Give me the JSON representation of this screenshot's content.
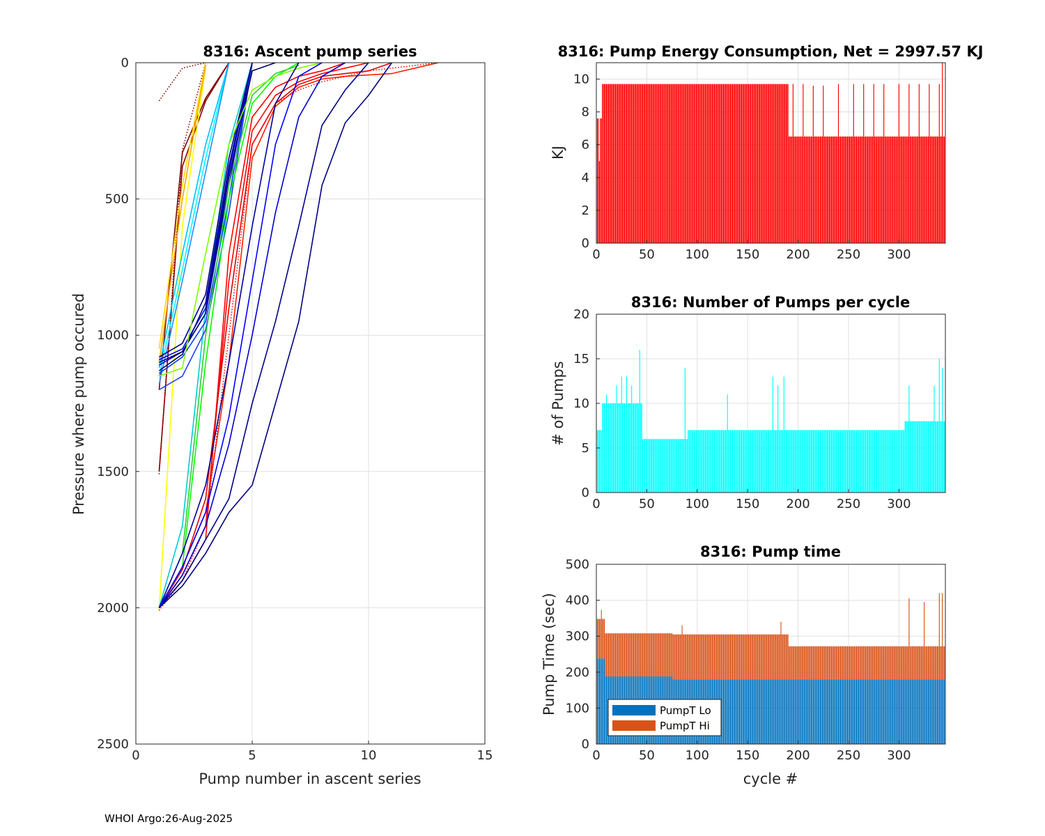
{
  "footer": "WHOI Argo:26-Aug-2025",
  "colors": {
    "energy": "#ff0000",
    "pumps": "#00ffff",
    "pump_lo": "#0072bd",
    "pump_hi": "#d95319",
    "grid": "#e0e0e0"
  },
  "chart_data": [
    {
      "id": "ascent",
      "type": "line",
      "title": "8316: Ascent pump series",
      "xlabel": "Pump number in ascent series",
      "ylabel": "Pressure where pump occured",
      "xlim": [
        0,
        15
      ],
      "ylim": [
        2500,
        0
      ],
      "xticks": [
        0,
        5,
        10,
        15
      ],
      "yticks": [
        0,
        500,
        1000,
        1500,
        2000,
        2500
      ],
      "grid": true,
      "series": [
        {
          "name": "early-dotted-1",
          "color": "#7f0000",
          "style": "dotted",
          "x": [
            1,
            2,
            3
          ],
          "y": [
            140,
            20,
            0
          ]
        },
        {
          "name": "early-dotted-2",
          "color": "#7f0000",
          "style": "dotted",
          "x": [
            1,
            2,
            3
          ],
          "y": [
            1510,
            320,
            0
          ]
        },
        {
          "name": "early-1",
          "color": "#7f0000",
          "style": "solid",
          "x": [
            1,
            2,
            3,
            4
          ],
          "y": [
            1200,
            330,
            130,
            0
          ]
        },
        {
          "name": "early-2",
          "color": "#8b0000",
          "style": "solid",
          "x": [
            1,
            2,
            3,
            4
          ],
          "y": [
            1500,
            380,
            140,
            0
          ]
        },
        {
          "name": "early-3",
          "color": "#ffd700",
          "style": "solid",
          "x": [
            1,
            2,
            3
          ],
          "y": [
            1050,
            450,
            0
          ]
        },
        {
          "name": "early-4",
          "color": "#ffff00",
          "style": "solid",
          "x": [
            1,
            2,
            3
          ],
          "y": [
            2010,
            600,
            20
          ]
        },
        {
          "name": "early-5",
          "color": "#ffa500",
          "style": "solid",
          "x": [
            1,
            2,
            3
          ],
          "y": [
            1100,
            500,
            10
          ]
        },
        {
          "name": "cyan-1",
          "color": "#00bfff",
          "style": "solid",
          "x": [
            1,
            2,
            3,
            4
          ],
          "y": [
            1120,
            700,
            300,
            0
          ]
        },
        {
          "name": "cyan-2",
          "color": "#00ffff",
          "style": "solid",
          "x": [
            1,
            2,
            3,
            4
          ],
          "y": [
            1150,
            760,
            350,
            0
          ]
        },
        {
          "name": "cyan-3",
          "color": "#1e90ff",
          "style": "solid",
          "x": [
            1,
            2,
            3,
            4
          ],
          "y": [
            1180,
            800,
            400,
            0
          ]
        },
        {
          "name": "cyan-4",
          "color": "#00ced1",
          "style": "solid",
          "x": [
            1,
            2,
            3,
            4,
            5
          ],
          "y": [
            2000,
            1700,
            900,
            300,
            0
          ]
        },
        {
          "name": "blue-1",
          "color": "#0000ff",
          "style": "solid",
          "x": [
            1,
            2,
            3,
            4,
            5
          ],
          "y": [
            1090,
            1050,
            900,
            400,
            0
          ]
        },
        {
          "name": "blue-2",
          "color": "#0000cd",
          "style": "solid",
          "x": [
            1,
            2,
            3,
            4,
            5
          ],
          "y": [
            1110,
            1060,
            920,
            450,
            0
          ]
        },
        {
          "name": "blue-3",
          "color": "#0040ff",
          "style": "solid",
          "x": [
            1,
            2,
            3,
            4,
            5
          ],
          "y": [
            1140,
            1080,
            950,
            500,
            0
          ]
        },
        {
          "name": "blue-4",
          "color": "#2040ff",
          "style": "solid",
          "x": [
            1,
            2,
            3,
            4,
            5
          ],
          "y": [
            1200,
            1150,
            980,
            550,
            0
          ]
        },
        {
          "name": "navy-1",
          "color": "#00008b",
          "style": "solid",
          "x": [
            1,
            2,
            3,
            4,
            5
          ],
          "y": [
            1080,
            1030,
            850,
            350,
            0
          ]
        },
        {
          "name": "navy-2",
          "color": "#000080",
          "style": "solid",
          "x": [
            1,
            2,
            3,
            4,
            5
          ],
          "y": [
            1130,
            1070,
            880,
            380,
            0
          ]
        },
        {
          "name": "navy-3",
          "color": "#000066",
          "style": "solid",
          "x": [
            1,
            2,
            3,
            4,
            5,
            6
          ],
          "y": [
            1100,
            1060,
            920,
            420,
            30,
            0
          ]
        },
        {
          "name": "green-1",
          "color": "#00ff00",
          "style": "solid",
          "x": [
            1,
            2,
            3,
            4,
            5,
            6,
            7
          ],
          "y": [
            2000,
            1850,
            1100,
            500,
            150,
            50,
            0
          ]
        },
        {
          "name": "green-2",
          "color": "#32cd32",
          "style": "solid",
          "x": [
            1,
            2,
            3,
            4,
            5,
            6,
            7
          ],
          "y": [
            2000,
            1800,
            1000,
            450,
            120,
            40,
            10
          ]
        },
        {
          "name": "green-3",
          "color": "#7fff00",
          "style": "solid",
          "x": [
            1,
            2,
            3,
            4,
            5,
            6,
            7,
            8
          ],
          "y": [
            1150,
            1120,
            700,
            300,
            100,
            50,
            20,
            0
          ]
        },
        {
          "name": "red-1",
          "color": "#ff0000",
          "style": "solid",
          "x": [
            1,
            2,
            3,
            4,
            5,
            6,
            7,
            8,
            9
          ],
          "y": [
            2000,
            1900,
            1750,
            700,
            200,
            90,
            50,
            30,
            0
          ]
        },
        {
          "name": "red-2",
          "color": "#ff0000",
          "style": "solid",
          "x": [
            1,
            2,
            3,
            4,
            5,
            6,
            7,
            8,
            9,
            10
          ],
          "y": [
            2000,
            1880,
            1700,
            800,
            250,
            120,
            70,
            40,
            20,
            0
          ]
        },
        {
          "name": "red-3",
          "color": "#e00000",
          "style": "solid",
          "x": [
            1,
            2,
            3,
            4,
            5,
            6,
            7,
            8,
            9,
            10,
            11
          ],
          "y": [
            2000,
            1860,
            1600,
            900,
            300,
            150,
            80,
            50,
            40,
            30,
            0
          ]
        },
        {
          "name": "red-4",
          "color": "#ff2000",
          "style": "solid",
          "x": [
            1,
            2,
            3,
            4,
            5,
            6,
            7,
            8,
            9,
            10,
            11,
            12,
            13
          ],
          "y": [
            2000,
            1850,
            1650,
            1100,
            350,
            160,
            90,
            60,
            50,
            45,
            40,
            20,
            0
          ]
        },
        {
          "name": "red-dotted",
          "color": "#ff0000",
          "style": "dotted",
          "x": [
            1,
            2,
            3,
            4,
            5,
            6,
            7,
            8,
            9,
            10,
            11,
            12,
            13
          ],
          "y": [
            2010,
            1900,
            1700,
            1000,
            300,
            150,
            100,
            70,
            50,
            30,
            20,
            10,
            0
          ]
        },
        {
          "name": "late-1",
          "color": "#000080",
          "style": "solid",
          "x": [
            1,
            2,
            3,
            4,
            5,
            6,
            7,
            8,
            9,
            10,
            11
          ],
          "y": [
            2000,
            1920,
            1800,
            1650,
            1550,
            1250,
            950,
            450,
            220,
            120,
            0
          ]
        },
        {
          "name": "late-2",
          "color": "#00008b",
          "style": "solid",
          "x": [
            1,
            2,
            3,
            4,
            5,
            6,
            7,
            8,
            9,
            10
          ],
          "y": [
            2000,
            1900,
            1750,
            1600,
            1250,
            950,
            600,
            230,
            100,
            0
          ]
        },
        {
          "name": "late-3",
          "color": "#0000cd",
          "style": "solid",
          "x": [
            1,
            2,
            3,
            4,
            5,
            6,
            7,
            8,
            9
          ],
          "y": [
            2000,
            1880,
            1700,
            1400,
            1000,
            550,
            200,
            50,
            0
          ]
        },
        {
          "name": "late-4",
          "color": "#0000ff",
          "style": "solid",
          "x": [
            1,
            2,
            3,
            4,
            5,
            6,
            7,
            8
          ],
          "y": [
            2000,
            1850,
            1650,
            1300,
            800,
            300,
            50,
            0
          ]
        },
        {
          "name": "late-5",
          "color": "#0000a0",
          "style": "solid",
          "x": [
            1,
            2,
            3,
            4,
            5,
            6,
            7
          ],
          "y": [
            2000,
            1800,
            1550,
            1100,
            600,
            150,
            0
          ]
        }
      ]
    },
    {
      "id": "energy",
      "type": "bar",
      "title": "8316: Pump Energy Consumption,  Net = 2997.57 KJ",
      "xlabel": "",
      "ylabel": "KJ",
      "xlim": [
        0,
        346
      ],
      "ylim": [
        0,
        11
      ],
      "xticks": [
        0,
        50,
        100,
        150,
        200,
        250,
        300
      ],
      "yticks": [
        0,
        2,
        4,
        6,
        8,
        10
      ],
      "grid": true,
      "color": "#ff0000",
      "n_cycles": 345,
      "segments": [
        {
          "from": 1,
          "to": 5,
          "value": 7.6
        },
        {
          "from": 6,
          "to": 190,
          "value": 9.7
        },
        {
          "from": 191,
          "to": 345,
          "value": 6.5
        }
      ],
      "spikes": [
        {
          "cycle": 3,
          "value": 5.0
        },
        {
          "cycle": 195,
          "value": 9.7
        },
        {
          "cycle": 205,
          "value": 9.7
        },
        {
          "cycle": 215,
          "value": 9.6
        },
        {
          "cycle": 225,
          "value": 9.6
        },
        {
          "cycle": 240,
          "value": 9.7
        },
        {
          "cycle": 255,
          "value": 9.7
        },
        {
          "cycle": 265,
          "value": 9.7
        },
        {
          "cycle": 275,
          "value": 9.7
        },
        {
          "cycle": 285,
          "value": 9.7
        },
        {
          "cycle": 300,
          "value": 9.7
        },
        {
          "cycle": 310,
          "value": 9.7
        },
        {
          "cycle": 320,
          "value": 9.7
        },
        {
          "cycle": 330,
          "value": 9.7
        },
        {
          "cycle": 340,
          "value": 9.7
        },
        {
          "cycle": 343,
          "value": 11.0
        }
      ]
    },
    {
      "id": "pumps",
      "type": "bar",
      "title": "8316: Number of Pumps per cycle",
      "xlabel": "",
      "ylabel": "# of Pumps",
      "xlim": [
        0,
        346
      ],
      "ylim": [
        0,
        20
      ],
      "xticks": [
        0,
        50,
        100,
        150,
        200,
        250,
        300
      ],
      "yticks": [
        0,
        5,
        10,
        15,
        20
      ],
      "grid": true,
      "color": "#00ffff",
      "n_cycles": 345,
      "segments": [
        {
          "from": 1,
          "to": 5,
          "value": 7
        },
        {
          "from": 6,
          "to": 45,
          "value": 10
        },
        {
          "from": 46,
          "to": 90,
          "value": 6
        },
        {
          "from": 91,
          "to": 185,
          "value": 7
        },
        {
          "from": 186,
          "to": 305,
          "value": 7
        },
        {
          "from": 306,
          "to": 345,
          "value": 8
        }
      ],
      "spikes": [
        {
          "cycle": 10,
          "value": 11
        },
        {
          "cycle": 20,
          "value": 12
        },
        {
          "cycle": 25,
          "value": 13
        },
        {
          "cycle": 30,
          "value": 13
        },
        {
          "cycle": 35,
          "value": 12
        },
        {
          "cycle": 43,
          "value": 16
        },
        {
          "cycle": 88,
          "value": 14
        },
        {
          "cycle": 130,
          "value": 11
        },
        {
          "cycle": 175,
          "value": 13
        },
        {
          "cycle": 180,
          "value": 12
        },
        {
          "cycle": 186,
          "value": 13
        },
        {
          "cycle": 310,
          "value": 12
        },
        {
          "cycle": 335,
          "value": 12
        },
        {
          "cycle": 340,
          "value": 15
        },
        {
          "cycle": 343,
          "value": 14
        }
      ]
    },
    {
      "id": "pumptime",
      "type": "bar",
      "stacked": true,
      "title": "8316: Pump time",
      "xlabel": "cycle #",
      "ylabel": "Pump Time (sec)",
      "xlim": [
        0,
        346
      ],
      "ylim": [
        0,
        500
      ],
      "xticks": [
        0,
        50,
        100,
        150,
        200,
        250,
        300
      ],
      "yticks": [
        0,
        100,
        200,
        300,
        400,
        500
      ],
      "grid": true,
      "legend": {
        "position": "bottom-left",
        "entries": [
          "PumpT Lo",
          "PumpT Hi"
        ]
      },
      "n_cycles": 345,
      "series": [
        {
          "name": "PumpT Lo",
          "color": "#0072bd",
          "segments": [
            {
              "from": 1,
              "to": 8,
              "value": 238
            },
            {
              "from": 9,
              "to": 75,
              "value": 188
            },
            {
              "from": 76,
              "to": 345,
              "value": 180
            }
          ]
        },
        {
          "name": "PumpT Hi",
          "color": "#d95319",
          "segments": [
            {
              "from": 1,
              "to": 8,
              "value": 110
            },
            {
              "from": 9,
              "to": 75,
              "value": 120
            },
            {
              "from": 76,
              "to": 190,
              "value": 125
            },
            {
              "from": 191,
              "to": 345,
              "value": 92
            }
          ],
          "spikes": [
            {
              "cycle": 5,
              "value": 135
            },
            {
              "cycle": 85,
              "value": 150
            },
            {
              "cycle": 183,
              "value": 160
            },
            {
              "cycle": 310,
              "value": 225
            },
            {
              "cycle": 325,
              "value": 215
            },
            {
              "cycle": 340,
              "value": 240
            },
            {
              "cycle": 343,
              "value": 240
            }
          ]
        }
      ]
    }
  ]
}
